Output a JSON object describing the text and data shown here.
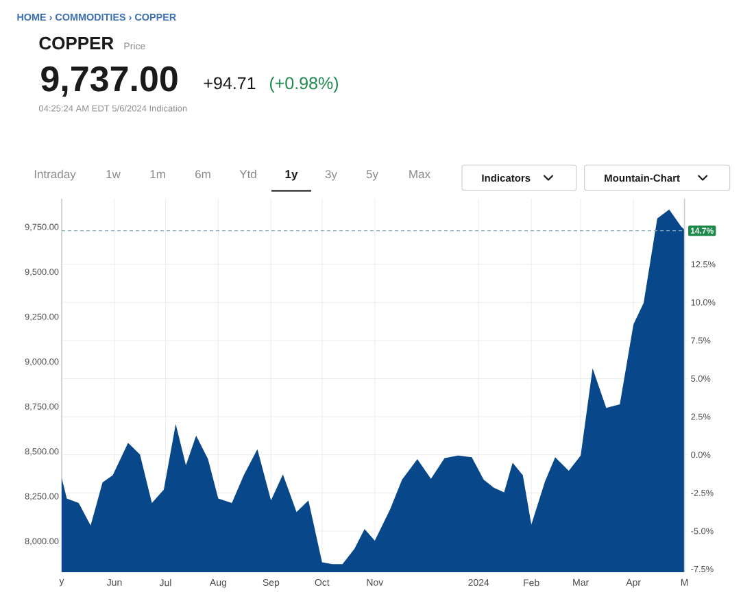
{
  "chart_data": {
    "type": "area",
    "title": "COPPER",
    "subtitle": "Price",
    "annotations": [
      "HOME › COMMODITIES › COPPER",
      "9,737.00",
      "+94.71",
      "(+0.98%)",
      "04:25:24 AM EDT 5/6/2024 Indication",
      "Intraday",
      "1w",
      "1m",
      "6m",
      "Ytd",
      "1y",
      "3y",
      "5y",
      "Max",
      "Indicators",
      "Mountain-Chart"
    ],
    "x": [
      "2023-05-01",
      "2023-05-04",
      "2023-05-11",
      "2023-05-18",
      "2023-05-25",
      "2023-05-31",
      "2023-06-09",
      "2023-06-16",
      "2023-06-23",
      "2023-06-30",
      "2023-07-07",
      "2023-07-13",
      "2023-07-19",
      "2023-07-26",
      "2023-08-01",
      "2023-08-09",
      "2023-08-16",
      "2023-08-24",
      "2023-09-01",
      "2023-09-08",
      "2023-09-16",
      "2023-09-23",
      "2023-10-01",
      "2023-10-07",
      "2023-10-13",
      "2023-10-20",
      "2023-10-26",
      "2023-11-01",
      "2023-11-10",
      "2023-11-17",
      "2023-11-26",
      "2023-12-04",
      "2023-12-12",
      "2023-12-20",
      "2023-12-28",
      "2024-01-04",
      "2024-01-10",
      "2024-01-16",
      "2024-01-21",
      "2024-01-27",
      "2024-02-01",
      "2024-02-09",
      "2024-02-15",
      "2024-02-23",
      "2024-03-01",
      "2024-03-08",
      "2024-03-16",
      "2024-03-24",
      "2024-04-01",
      "2024-04-07",
      "2024-04-15",
      "2024-04-22",
      "2024-04-29",
      "2024-05-01"
    ],
    "series": [
      {
        "color": "#08488a",
        "values": [
          8355,
          8240,
          8215,
          8090,
          8330,
          8370,
          8550,
          8485,
          8215,
          8290,
          8655,
          8425,
          8590,
          8460,
          8240,
          8215,
          8370,
          8515,
          8230,
          8375,
          8165,
          8230,
          7885,
          7875,
          7875,
          7960,
          8070,
          8005,
          8180,
          8345,
          8460,
          8350,
          8465,
          8480,
          8470,
          8345,
          8300,
          8275,
          8440,
          8370,
          8095,
          8335,
          8470,
          8395,
          8480,
          8965,
          8745,
          8765,
          9210,
          9330,
          9800,
          9850,
          9755,
          9737
        ]
      }
    ],
    "xlim": [
      "2023-05-01",
      "2024-05-01"
    ],
    "xticks": [
      {
        "value": "2023-05-01",
        "label": "y"
      },
      {
        "value": "2023-06-01",
        "label": "Jun"
      },
      {
        "value": "2023-07-01",
        "label": "Jul"
      },
      {
        "value": "2023-08-01",
        "label": "Aug"
      },
      {
        "value": "2023-09-01",
        "label": "Sep"
      },
      {
        "value": "2023-10-01",
        "label": "Oct"
      },
      {
        "value": "2023-11-01",
        "label": "Nov"
      },
      {
        "value": "2024-01-01",
        "label": "2024"
      },
      {
        "value": "2024-02-01",
        "label": "Feb"
      },
      {
        "value": "2024-03-01",
        "label": "Mar"
      },
      {
        "value": "2024-04-01",
        "label": "Apr"
      },
      {
        "value": "2024-05-01",
        "label": "M"
      }
    ],
    "ylim": [
      7830,
      9910
    ],
    "yticks": [
      {
        "value": 8000,
        "label": "8,000.00"
      },
      {
        "value": 8250,
        "label": "8,250.00"
      },
      {
        "value": 8500,
        "label": "8,500.00"
      },
      {
        "value": 8750,
        "label": "8,750.00"
      },
      {
        "value": 9000,
        "label": "9,000.00"
      },
      {
        "value": 9250,
        "label": "9,250.00"
      },
      {
        "value": 9500,
        "label": "9,500.00"
      },
      {
        "value": 9750,
        "label": "9,750.00"
      }
    ],
    "y2lim": [
      -7.7,
      16.8
    ],
    "y2ticks": [
      {
        "value": -7.5,
        "label": "-7.5%"
      },
      {
        "value": -5,
        "label": "-5.0%"
      },
      {
        "value": -2.5,
        "label": "-2.5%"
      },
      {
        "value": 0,
        "label": "0.0%"
      },
      {
        "value": 2.5,
        "label": "2.5%"
      },
      {
        "value": 5,
        "label": "5.0%"
      },
      {
        "value": 7.5,
        "label": "7.5%"
      },
      {
        "value": 10,
        "label": "10.0%"
      },
      {
        "value": 12.5,
        "label": "12.5%"
      }
    ],
    "grid": true,
    "ref_lines": [
      {
        "axis": "y2",
        "value": 14.7,
        "label": "14.7%",
        "color": "#86aeb8",
        "line_style": "dashed"
      }
    ]
  }
}
